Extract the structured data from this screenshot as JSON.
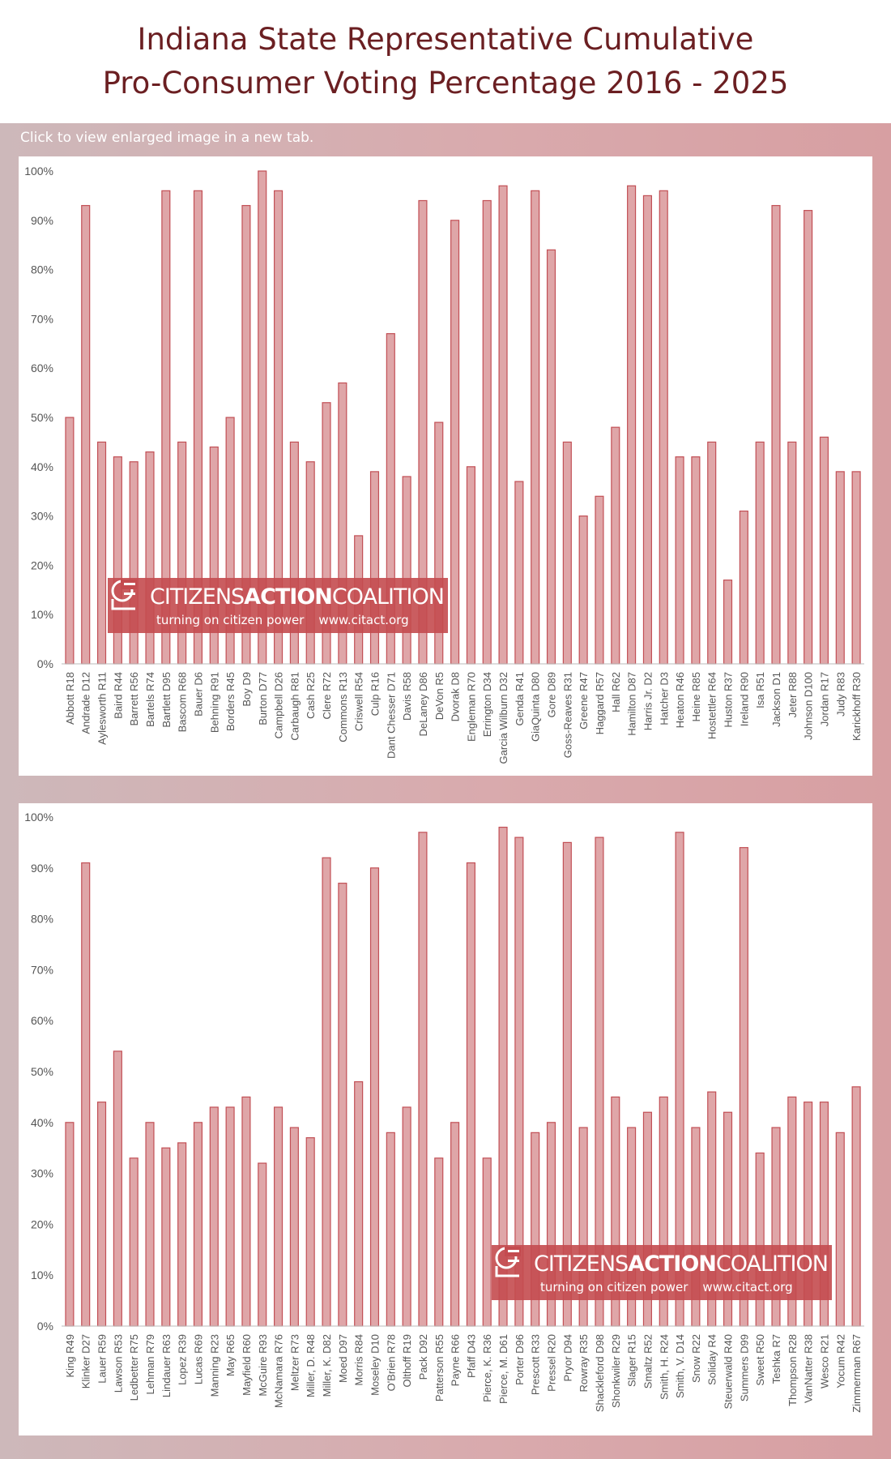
{
  "title": "Indiana State Representative Cumulative Pro-Consumer Voting Percentage 2016 - 2025",
  "title_line1": "Indiana State Representative Cumulative",
  "title_line2": "Pro-Consumer Voting Percentage 2016 - 2025",
  "enlarge_note": "Click to view enlarged image in a new tab.",
  "watermark": {
    "part1": "CITIZENS",
    "part2": "ACTION",
    "part3": "COALITION",
    "tagline": "turning on citizen power",
    "url": "www.citact.org"
  },
  "colors": {
    "title": "#6b1f22",
    "bar_fill": "#dfa6a8",
    "bar_stroke": "#c24f55",
    "background_band": "#d5a8ab",
    "watermark": "#c44b4f"
  },
  "chart_data": [
    {
      "type": "bar",
      "ylim": [
        0,
        100
      ],
      "yticks": [
        "0%",
        "10%",
        "20%",
        "30%",
        "40%",
        "50%",
        "60%",
        "70%",
        "80%",
        "90%",
        "100%"
      ],
      "grid": false,
      "categories": [
        "Abbott R18",
        "Andrade D12",
        "Aylesworth R11",
        "Baird R44",
        "Barrett R56",
        "Bartels R74",
        "Bartlett D95",
        "Bascom R68",
        "Bauer D6",
        "Behning R91",
        "Borders R45",
        "Boy D9",
        "Burton D77",
        "Campbell D26",
        "Carbaugh R81",
        "Cash R25",
        "Clere R72",
        "Commons R13",
        "Criswell R54",
        "Culp R16",
        "Dant Chesser D71",
        "Davis R58",
        "DeLaney D86",
        "DeVon R5",
        "Dvorak D8",
        "Engleman R70",
        "Errington D34",
        "Garcia Wilburn D32",
        "Genda R41",
        "GiaQuinta D80",
        "Gore D89",
        "Goss-Reaves R31",
        "Greene R47",
        "Haggard R57",
        "Hall R62",
        "Hamilton D87",
        "Harris Jr. D2",
        "Hatcher D3",
        "Heaton R46",
        "Heine R85",
        "Hostettler R64",
        "Huston R37",
        "Ireland R90",
        "Isa R51",
        "Jackson D1",
        "Jeter R88",
        "Johnson D100",
        "Jordan R17",
        "Judy R83",
        "Karickhoff R30"
      ],
      "values": [
        50,
        93,
        45,
        42,
        41,
        43,
        96,
        45,
        96,
        44,
        50,
        93,
        100,
        96,
        45,
        41,
        53,
        57,
        26,
        39,
        67,
        38,
        94,
        49,
        90,
        40,
        94,
        97,
        37,
        96,
        84,
        45,
        30,
        34,
        48,
        97,
        95,
        96,
        42,
        42,
        45,
        17,
        31,
        45,
        93,
        45,
        92,
        46,
        39,
        39
      ]
    },
    {
      "type": "bar",
      "ylim": [
        0,
        100
      ],
      "yticks": [
        "0%",
        "10%",
        "20%",
        "30%",
        "40%",
        "50%",
        "60%",
        "70%",
        "80%",
        "90%",
        "100%"
      ],
      "grid": false,
      "categories": [
        "King R49",
        "Klinker D27",
        "Lauer R59",
        "Lawson R53",
        "Ledbetter R75",
        "Lehman R79",
        "Lindauer R63",
        "Lopez R39",
        "Lucas R69",
        "Manning R23",
        "May R65",
        "Mayfield R60",
        "McGuire R93",
        "McNamara R76",
        "Meltzer R73",
        "Miller, D. R48",
        "Miller, K. D82",
        "Moed D97",
        "Morris R84",
        "Moseley D10",
        "O'Brien R78",
        "Olthoff R19",
        "Pack D92",
        "Patterson R55",
        "Payne R66",
        "Pfaff D43",
        "Pierce, K. R36",
        "Pierce, M. D61",
        "Porter D96",
        "Prescott R33",
        "Pressel R20",
        "Pryor D94",
        "Rowray R35",
        "Shackleford D98",
        "Shonkwiler R29",
        "Slager R15",
        "Smaltz R52",
        "Smith, H. R24",
        "Smith, V. D14",
        "Snow R22",
        "Soliday R4",
        "Steuerwald R40",
        "Summers D99",
        "Sweet R50",
        "Teshka R7",
        "Thompson R28",
        "VanNatter R38",
        "Wesco R21",
        "Yocum R42",
        "Zimmerman R67"
      ],
      "values": [
        40,
        91,
        44,
        54,
        33,
        40,
        35,
        36,
        40,
        43,
        43,
        45,
        32,
        43,
        39,
        37,
        92,
        87,
        48,
        90,
        38,
        43,
        97,
        33,
        40,
        91,
        33,
        98,
        96,
        38,
        40,
        95,
        39,
        96,
        45,
        39,
        42,
        45,
        97,
        39,
        46,
        42,
        94,
        34,
        39,
        45,
        44,
        44,
        38,
        47
      ]
    }
  ]
}
